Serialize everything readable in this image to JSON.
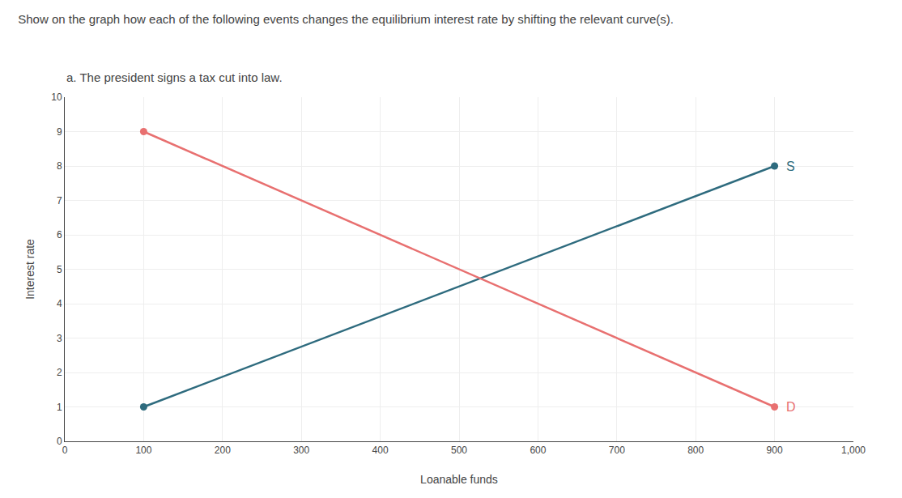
{
  "chart_data": {
    "type": "line",
    "title": "Show on the graph how each of the following events changes the equilibrium interest rate by shifting the relevant curve(s).",
    "subtitle": "a. The president signs a tax cut into law.",
    "xlabel": "Loanable funds",
    "ylabel": "Interest rate",
    "x": [
      100,
      900
    ],
    "series": [
      {
        "name": "S",
        "color": "#2e6b7e",
        "values": [
          1,
          8
        ]
      },
      {
        "name": "D",
        "color": "#e87070",
        "values": [
          9,
          1
        ]
      }
    ],
    "xlim": [
      0,
      1000
    ],
    "xticks": [
      0,
      100,
      200,
      300,
      400,
      500,
      600,
      700,
      800,
      900,
      {
        "value": 1000,
        "label": "1,000"
      }
    ],
    "ylim": [
      0,
      10
    ],
    "yticks": [
      0,
      1,
      2,
      3,
      4,
      5,
      6,
      7,
      8,
      9,
      10
    ],
    "grid": true,
    "marker": "circle"
  }
}
